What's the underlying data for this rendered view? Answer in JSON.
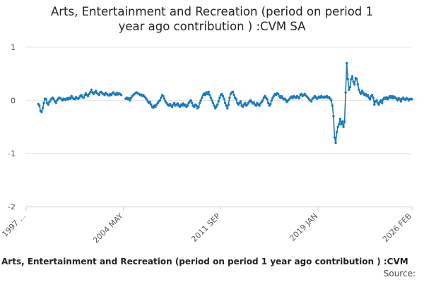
{
  "chart_data": {
    "type": "line",
    "title": "Arts, Entertainment and Recreation (period on period 1 year ago contribution ) :CVM SA",
    "caption": "Arts, Entertainment and Recreation (period on period 1 year ago contribution ) :CVM",
    "source": "Source:",
    "categories": [
      "1997 ...",
      null,
      null,
      null,
      null,
      null,
      null,
      null,
      null,
      null,
      null,
      null,
      null,
      null,
      null,
      null,
      null,
      null,
      null,
      null,
      null,
      null,
      null,
      null,
      null,
      null,
      null,
      null,
      null,
      null,
      null,
      null,
      null,
      null,
      null,
      null,
      null,
      null,
      null,
      null,
      null,
      null,
      null,
      null,
      null,
      null,
      null,
      null,
      null,
      null,
      null,
      null,
      null,
      null,
      null,
      null,
      null,
      null,
      null,
      null,
      null,
      null,
      null,
      null,
      null,
      null,
      null,
      null,
      null,
      null,
      null,
      null,
      null,
      null,
      null,
      null,
      null,
      null,
      null,
      null,
      null,
      null,
      null,
      null,
      null,
      null,
      null,
      null,
      "2004 MAY",
      null,
      null,
      null,
      null,
      null,
      null,
      null,
      null,
      null,
      null,
      null,
      null,
      null,
      null,
      null,
      null,
      null,
      null,
      null,
      null,
      null,
      null,
      null,
      null,
      null,
      null,
      null,
      null,
      null,
      null,
      null,
      null,
      null,
      null,
      null,
      null,
      null,
      null,
      null,
      null,
      null,
      null,
      null,
      null,
      null,
      null,
      null,
      null,
      null,
      null,
      null,
      null,
      null,
      null,
      null,
      null,
      null,
      null,
      null,
      null,
      null,
      null,
      null,
      null,
      null,
      null,
      null,
      null,
      null,
      null,
      null,
      null,
      null,
      null,
      null,
      null,
      null,
      null,
      null,
      null,
      null,
      null,
      null,
      null,
      null,
      null,
      null,
      "2011 SEP",
      null,
      null,
      null,
      null,
      null,
      null,
      null,
      null,
      null,
      null,
      null,
      null,
      null,
      null,
      null,
      null,
      null,
      null,
      null,
      null,
      null,
      null,
      null,
      null,
      null,
      null,
      null,
      null,
      null,
      null,
      null,
      null,
      null,
      null,
      null,
      null,
      null,
      null,
      null,
      null,
      null,
      null,
      null,
      null,
      null,
      null,
      null,
      null,
      null,
      null,
      null,
      null,
      null,
      null,
      null,
      null,
      null,
      null,
      null,
      null,
      null,
      null,
      null,
      null,
      null,
      null,
      null,
      null,
      null,
      null,
      null,
      null,
      null,
      null,
      null,
      null,
      null,
      null,
      null,
      null,
      null,
      null,
      null,
      null,
      null,
      null,
      null,
      "2019 JAN",
      null,
      null,
      null,
      null,
      null,
      null,
      null,
      null,
      null,
      null,
      null,
      null,
      null,
      null,
      null,
      null,
      null,
      null,
      null,
      null,
      null,
      null,
      null,
      null,
      null,
      null,
      null,
      null,
      null,
      null,
      null,
      null,
      null,
      null,
      null,
      null,
      null,
      null,
      null,
      null,
      null,
      null,
      null,
      null,
      null,
      null,
      null,
      null,
      null,
      null,
      null,
      null,
      null,
      null,
      null,
      null,
      null,
      null,
      null,
      null,
      null,
      null,
      null,
      null,
      null,
      null,
      null,
      null,
      null,
      null,
      null,
      null,
      null,
      null,
      null,
      null,
      null,
      null,
      null,
      null,
      null,
      null,
      null,
      null,
      "2026 FEB"
    ],
    "series": [
      {
        "name": "Arts, Entertainment and Recreation (period on period 1 year ago contribution ) :CVM SA",
        "color": "#1a7abf",
        "values": [
          null,
          null,
          null,
          null,
          null,
          null,
          null,
          null,
          null,
          null,
          null,
          -0.07,
          -0.1,
          -0.2,
          -0.22,
          -0.15,
          -0.05,
          0.03,
          0.02,
          -0.05,
          -0.08,
          -0.03,
          0,
          0.03,
          0.05,
          0.02,
          -0.02,
          -0.05,
          0,
          0.03,
          0.05,
          0.04,
          0.02,
          0,
          0.03,
          0.02,
          0.01,
          0.04,
          0.02,
          0.05,
          0.03,
          0.08,
          0.05,
          0.03,
          0.02,
          0.06,
          0.04,
          0.03,
          0.05,
          0.08,
          0.1,
          0.06,
          0.05,
          0.1,
          0.13,
          0.1,
          0.08,
          0.12,
          0.15,
          0.2,
          0.15,
          0.12,
          0.15,
          0.18,
          0.14,
          0.12,
          0.1,
          0.15,
          0.16,
          0.13,
          0.12,
          0.1,
          0.14,
          0.12,
          0.1,
          0.09,
          0.12,
          0.1,
          0.13,
          0.15,
          0.12,
          0.1,
          0.14,
          0.11,
          0.13,
          0.12,
          0.1,
          null,
          null,
          null,
          0.03,
          0.05,
          0.02,
          0.04,
          0,
          0.05,
          0.08,
          0.1,
          0.12,
          0.14,
          0.15,
          0.13,
          0.12,
          0.1,
          0.11,
          0.08,
          0.1,
          0.07,
          0.05,
          0.02,
          -0.02,
          -0.05,
          -0.03,
          -0.08,
          -0.12,
          -0.14,
          -0.1,
          -0.12,
          -0.08,
          -0.05,
          -0.02,
          0,
          0.05,
          0.1,
          0.08,
          0.03,
          -0.02,
          -0.05,
          -0.08,
          -0.1,
          -0.07,
          -0.1,
          -0.12,
          -0.08,
          -0.05,
          -0.1,
          -0.08,
          -0.06,
          -0.1,
          -0.12,
          -0.08,
          -0.1,
          -0.06,
          -0.1,
          -0.08,
          -0.12,
          -0.1,
          -0.05,
          -0.02,
          0,
          -0.05,
          -0.1,
          -0.12,
          -0.08,
          -0.1,
          -0.15,
          -0.12,
          -0.05,
          0,
          0.05,
          0.1,
          0.13,
          0.1,
          0.15,
          0.12,
          0.16,
          0.1,
          0.05,
          0,
          -0.05,
          -0.1,
          -0.15,
          -0.12,
          -0.08,
          -0.02,
          0.05,
          0.1,
          0.12,
          0.08,
          0.03,
          -0.05,
          -0.1,
          -0.15,
          -0.08,
          0.05,
          0.12,
          0.15,
          0.16,
          0.1,
          0.05,
          0.02,
          -0.05,
          -0.08,
          -0.05,
          -0.02,
          -0.1,
          -0.12,
          -0.08,
          -0.05,
          -0.1,
          -0.08,
          -0.05,
          -0.02,
          0,
          -0.03,
          -0.06,
          -0.04,
          -0.08,
          -0.1,
          -0.05,
          -0.08,
          -0.1,
          -0.06,
          -0.03,
          0,
          0.05,
          0.08,
          0.05,
          0.02,
          -0.05,
          -0.1,
          -0.07,
          0,
          0.05,
          0.08,
          0.12,
          0.1,
          0.13,
          0.12,
          0.08,
          0.05,
          0.08,
          0.04,
          0.02,
          0.03,
          0,
          -0.03,
          0,
          0.02,
          0.05,
          0.07,
          0.04,
          0.08,
          0.06,
          0.05,
          0.08,
          0.06,
          0.04,
          0.1,
          0.12,
          0.08,
          0.1,
          0.12,
          0.09,
          0.07,
          0.05,
          0.02,
          0,
          -0.02,
          0.03,
          0.05,
          0.08,
          0.06,
          0.03,
          0.05,
          0.07,
          0.05,
          0.08,
          0.06,
          0.05,
          0.07,
          0.06,
          0.08,
          0.05,
          0.06,
          0.03,
          0,
          -0.1,
          -0.3,
          -0.7,
          -0.8,
          -0.6,
          -0.5,
          -0.45,
          -0.35,
          -0.45,
          -0.4,
          -0.5,
          -0.4,
          0.15,
          0.7,
          0.4,
          0.2,
          0.25,
          0.4,
          0.45,
          0.35,
          0.3,
          0.42,
          0.4,
          0.3,
          0.2,
          0.15,
          0.12,
          0.18,
          0.14,
          0.1,
          0.12,
          0.08,
          0.1,
          0.05,
          0.02,
          0.08,
          0.1,
          0.05,
          -0.08,
          -0.02,
          0,
          -0.05,
          -0.08,
          -0.03,
          0,
          -0.05,
          0.02,
          0.05,
          0.03,
          0.06,
          0.02,
          0.05,
          0.08,
          0.05,
          0.08,
          0.04,
          0.07,
          0.05,
          0.03,
          0,
          0.04,
          0.02,
          -0.02,
          0.03,
          0.05,
          0.02,
          0.01,
          0.04,
          0.03,
          0,
          0.02,
          0.03,
          0.02
        ]
      }
    ],
    "ylim": [
      -2,
      1
    ],
    "yticks": [
      -2,
      -1,
      0,
      1
    ],
    "grid": true
  }
}
